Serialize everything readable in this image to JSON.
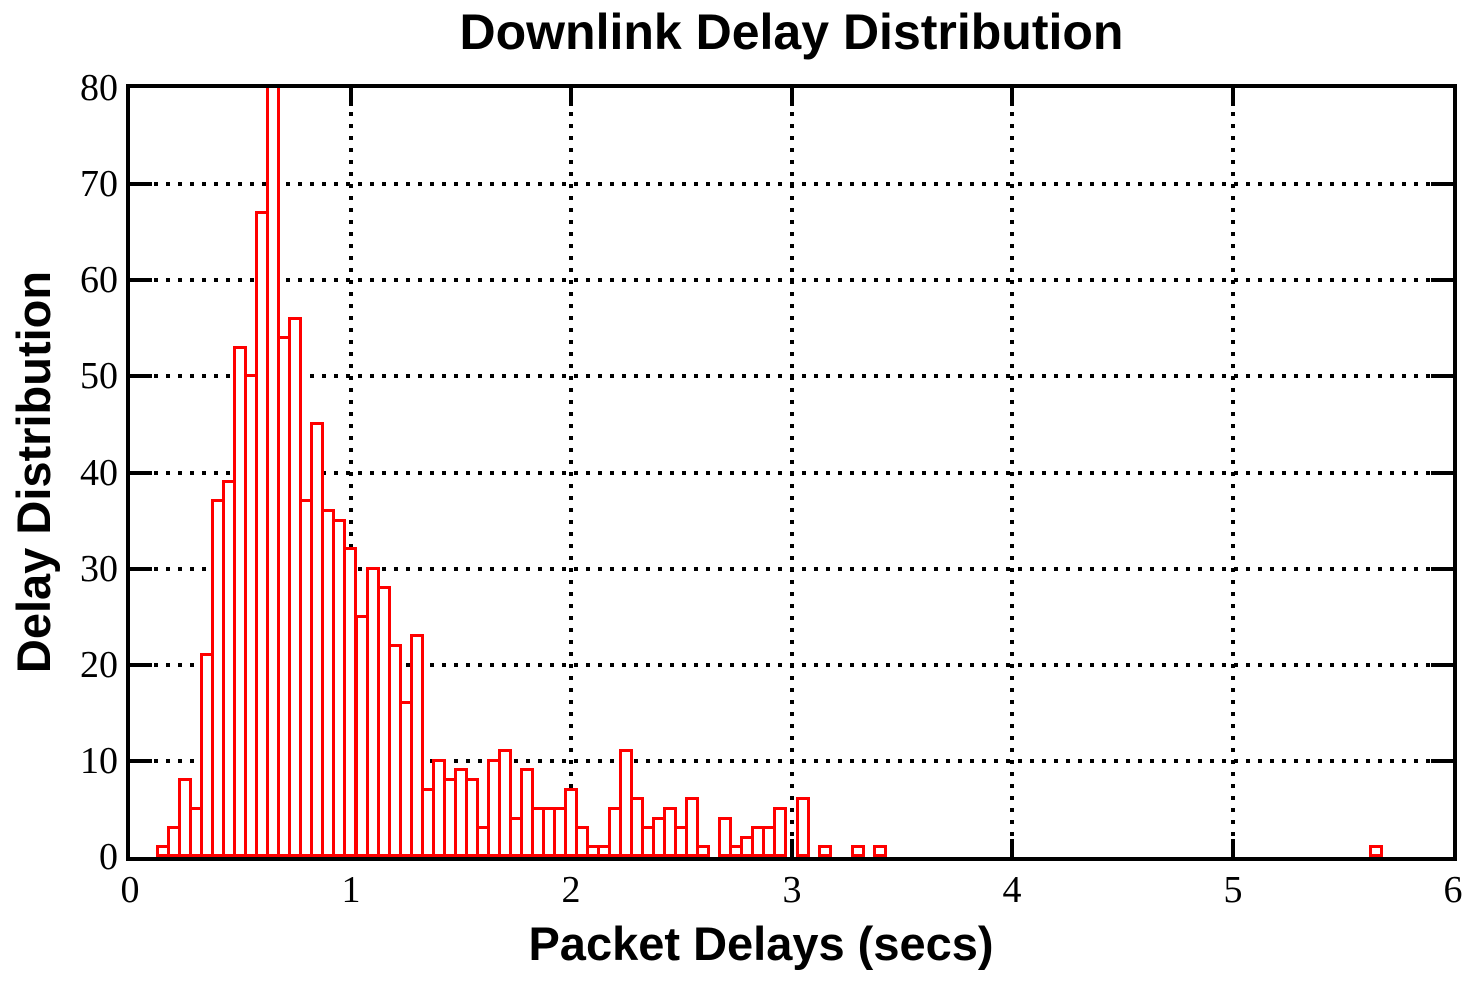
{
  "title": "Downlink Delay Distribution",
  "chart_data": {
    "type": "bar",
    "subtype": "histogram",
    "title": "Downlink Delay Distribution",
    "xlabel": "Packet Delays (secs)",
    "ylabel": "Delay Distribution",
    "xlim": [
      0,
      6
    ],
    "ylim": [
      0,
      80
    ],
    "x_ticks": [
      0,
      1,
      2,
      3,
      4,
      5,
      6
    ],
    "y_ticks": [
      0,
      10,
      20,
      30,
      40,
      50,
      60,
      70,
      80
    ],
    "grid": true,
    "grid_style": "dotted",
    "legend": "none",
    "bar_color": "#ff0000",
    "bar_fill": "#ffffff",
    "bin_width": 0.05,
    "note": "bar at x=0.65 exceeds y-axis maximum and is clipped at 80",
    "bars": [
      {
        "x": 0.15,
        "y": 1
      },
      {
        "x": 0.2,
        "y": 3
      },
      {
        "x": 0.25,
        "y": 8
      },
      {
        "x": 0.3,
        "y": 5
      },
      {
        "x": 0.35,
        "y": 21
      },
      {
        "x": 0.4,
        "y": 37
      },
      {
        "x": 0.45,
        "y": 39
      },
      {
        "x": 0.5,
        "y": 53
      },
      {
        "x": 0.55,
        "y": 50
      },
      {
        "x": 0.6,
        "y": 67
      },
      {
        "x": 0.65,
        "y": 85,
        "clipped": true
      },
      {
        "x": 0.7,
        "y": 54
      },
      {
        "x": 0.75,
        "y": 56
      },
      {
        "x": 0.8,
        "y": 37
      },
      {
        "x": 0.85,
        "y": 45
      },
      {
        "x": 0.9,
        "y": 36
      },
      {
        "x": 0.95,
        "y": 35
      },
      {
        "x": 1.0,
        "y": 32
      },
      {
        "x": 1.05,
        "y": 25
      },
      {
        "x": 1.1,
        "y": 30
      },
      {
        "x": 1.15,
        "y": 28
      },
      {
        "x": 1.2,
        "y": 22
      },
      {
        "x": 1.25,
        "y": 16
      },
      {
        "x": 1.3,
        "y": 23
      },
      {
        "x": 1.35,
        "y": 7
      },
      {
        "x": 1.4,
        "y": 10
      },
      {
        "x": 1.45,
        "y": 8
      },
      {
        "x": 1.5,
        "y": 9
      },
      {
        "x": 1.55,
        "y": 8
      },
      {
        "x": 1.6,
        "y": 3
      },
      {
        "x": 1.65,
        "y": 10
      },
      {
        "x": 1.7,
        "y": 11
      },
      {
        "x": 1.75,
        "y": 4
      },
      {
        "x": 1.8,
        "y": 9
      },
      {
        "x": 1.85,
        "y": 5
      },
      {
        "x": 1.9,
        "y": 5
      },
      {
        "x": 1.95,
        "y": 5
      },
      {
        "x": 2.0,
        "y": 7
      },
      {
        "x": 2.05,
        "y": 3
      },
      {
        "x": 2.1,
        "y": 1
      },
      {
        "x": 2.15,
        "y": 1
      },
      {
        "x": 2.2,
        "y": 5
      },
      {
        "x": 2.25,
        "y": 11
      },
      {
        "x": 2.3,
        "y": 6
      },
      {
        "x": 2.35,
        "y": 3
      },
      {
        "x": 2.4,
        "y": 4
      },
      {
        "x": 2.45,
        "y": 5
      },
      {
        "x": 2.5,
        "y": 3
      },
      {
        "x": 2.55,
        "y": 6
      },
      {
        "x": 2.6,
        "y": 1
      },
      {
        "x": 2.7,
        "y": 4
      },
      {
        "x": 2.75,
        "y": 1
      },
      {
        "x": 2.8,
        "y": 2
      },
      {
        "x": 2.85,
        "y": 3
      },
      {
        "x": 2.9,
        "y": 3
      },
      {
        "x": 2.95,
        "y": 5
      },
      {
        "x": 3.05,
        "y": 6
      },
      {
        "x": 3.15,
        "y": 1
      },
      {
        "x": 3.3,
        "y": 1
      },
      {
        "x": 3.4,
        "y": 1
      },
      {
        "x": 5.65,
        "y": 1
      }
    ]
  }
}
